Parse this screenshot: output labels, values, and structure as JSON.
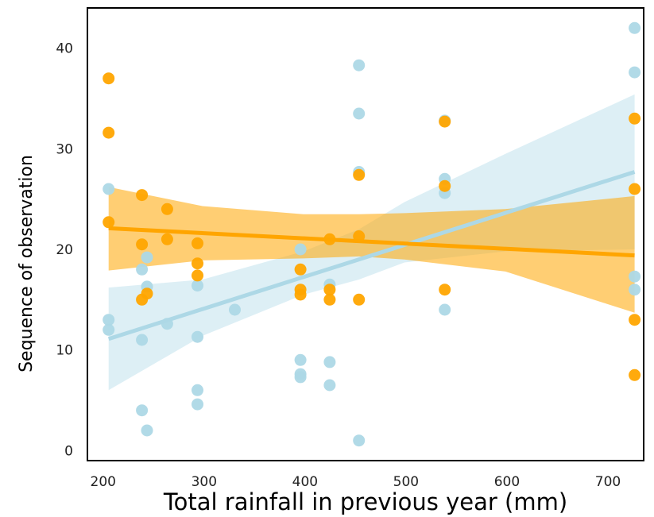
{
  "chart_data": {
    "type": "scatter",
    "xlabel": "Total rainfall in previous year (mm)",
    "ylabel": "Sequence of observation",
    "xlim": [
      186,
      737
    ],
    "ylim": [
      -1,
      44
    ],
    "xticks": [
      200,
      300,
      400,
      500,
      600,
      700
    ],
    "yticks": [
      0,
      10,
      20,
      30,
      40
    ],
    "grid": false,
    "series": [
      {
        "color": "#add8e6",
        "points": [
          [
            207,
            26
          ],
          [
            207,
            13
          ],
          [
            207,
            12
          ],
          [
            240,
            18
          ],
          [
            240,
            11
          ],
          [
            240,
            4
          ],
          [
            245,
            19.2
          ],
          [
            245,
            16.3
          ],
          [
            245,
            2
          ],
          [
            265,
            12.6
          ],
          [
            295,
            16.4
          ],
          [
            295,
            11.3
          ],
          [
            295,
            6
          ],
          [
            295,
            4.6
          ],
          [
            332,
            14
          ],
          [
            397,
            20
          ],
          [
            397,
            9
          ],
          [
            397,
            7.6
          ],
          [
            397,
            7.3
          ],
          [
            426,
            16.5
          ],
          [
            426,
            8.8
          ],
          [
            426,
            6.5
          ],
          [
            455,
            38.3
          ],
          [
            455,
            33.5
          ],
          [
            455,
            27.7
          ],
          [
            455,
            1
          ],
          [
            540,
            32.8
          ],
          [
            540,
            27
          ],
          [
            540,
            25.6
          ],
          [
            540,
            14
          ],
          [
            728,
            42
          ],
          [
            728,
            37.6
          ],
          [
            728,
            17.3
          ],
          [
            728,
            16
          ]
        ],
        "fit": {
          "x": [
            207,
            728
          ],
          "y": [
            11.1,
            27.7
          ]
        },
        "ci": {
          "x": [
            207,
            300,
            400,
            455,
            500,
            600,
            728
          ],
          "lower": [
            6,
            11.4,
            15.5,
            17,
            18.7,
            19.8,
            20
          ],
          "upper": [
            16.2,
            17,
            19.8,
            22,
            24.7,
            29.5,
            35.4
          ]
        }
      },
      {
        "color": "#ffa500",
        "points": [
          [
            207,
            37
          ],
          [
            207,
            31.6
          ],
          [
            207,
            22.7
          ],
          [
            240,
            25.4
          ],
          [
            240,
            20.5
          ],
          [
            240,
            15
          ],
          [
            245,
            15.6
          ],
          [
            265,
            24
          ],
          [
            265,
            21
          ],
          [
            295,
            20.6
          ],
          [
            295,
            18.6
          ],
          [
            295,
            17.4
          ],
          [
            397,
            18
          ],
          [
            397,
            16
          ],
          [
            397,
            15.5
          ],
          [
            426,
            21
          ],
          [
            426,
            16
          ],
          [
            426,
            15
          ],
          [
            455,
            27.4
          ],
          [
            455,
            21.3
          ],
          [
            455,
            15
          ],
          [
            540,
            32.7
          ],
          [
            540,
            26.3
          ],
          [
            540,
            16
          ],
          [
            728,
            33
          ],
          [
            728,
            26
          ],
          [
            728,
            13
          ],
          [
            728,
            7.5
          ]
        ],
        "fit": {
          "x": [
            207,
            728
          ],
          "y": [
            22.1,
            19.4
          ]
        },
        "ci": {
          "x": [
            207,
            300,
            400,
            455,
            500,
            600,
            728
          ],
          "lower": [
            17.9,
            18.9,
            19.1,
            19.3,
            19,
            17.8,
            13.7
          ],
          "upper": [
            26.2,
            24.3,
            23.5,
            23.5,
            23.6,
            24,
            25.3
          ]
        }
      }
    ]
  }
}
